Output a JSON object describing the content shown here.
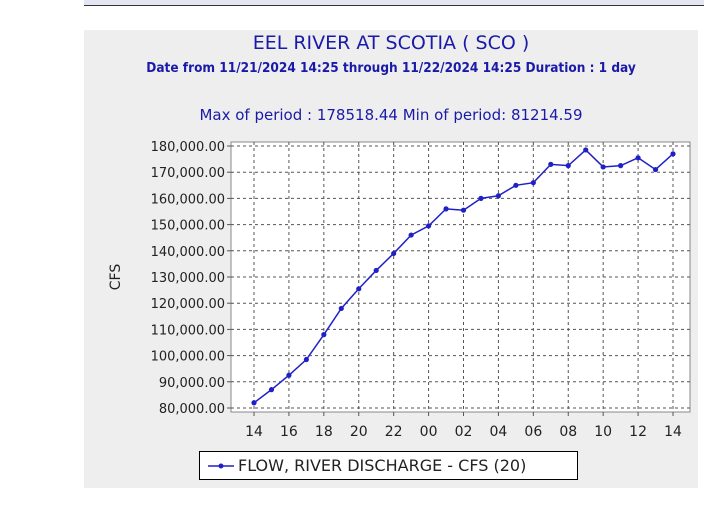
{
  "chart_data": {
    "type": "line",
    "title": "EEL RIVER AT SCOTIA ( SCO )",
    "subtitle": "Date from 11/21/2024 14:25 through 11/22/2024 14:25 Duration : 1 day",
    "stats": "Max of period : 178518.44  Min of period: 81214.59",
    "xlabel": "",
    "ylabel": "CFS",
    "ylim": [
      80000,
      180000
    ],
    "yticks": [
      "80,000.00",
      "90,000.00",
      "100,000.00",
      "110,000.00",
      "120,000.00",
      "130,000.00",
      "140,000.00",
      "150,000.00",
      "160,000.00",
      "170,000.00",
      "180,000.00"
    ],
    "xticks": [
      "14",
      "16",
      "18",
      "20",
      "22",
      "00",
      "02",
      "04",
      "06",
      "08",
      "10",
      "12",
      "14"
    ],
    "grid": true,
    "legend_position": "bottom",
    "x": [
      "14",
      "15",
      "16",
      "17",
      "18",
      "19",
      "20",
      "21",
      "22",
      "23",
      "00",
      "01",
      "02",
      "03",
      "04",
      "05",
      "06",
      "07",
      "08",
      "09",
      "10",
      "11",
      "12",
      "13",
      "14"
    ],
    "series": [
      {
        "name": "FLOW, RIVER DISCHARGE - CFS (20)",
        "color": "#2020c8",
        "values": [
          82000,
          87000,
          92500,
          98500,
          108000,
          118000,
          125500,
          132500,
          139000,
          146000,
          149500,
          156000,
          155500,
          160000,
          161000,
          165000,
          166000,
          173000,
          172500,
          178500,
          172000,
          172500,
          175500,
          171000,
          177000
        ]
      }
    ]
  }
}
